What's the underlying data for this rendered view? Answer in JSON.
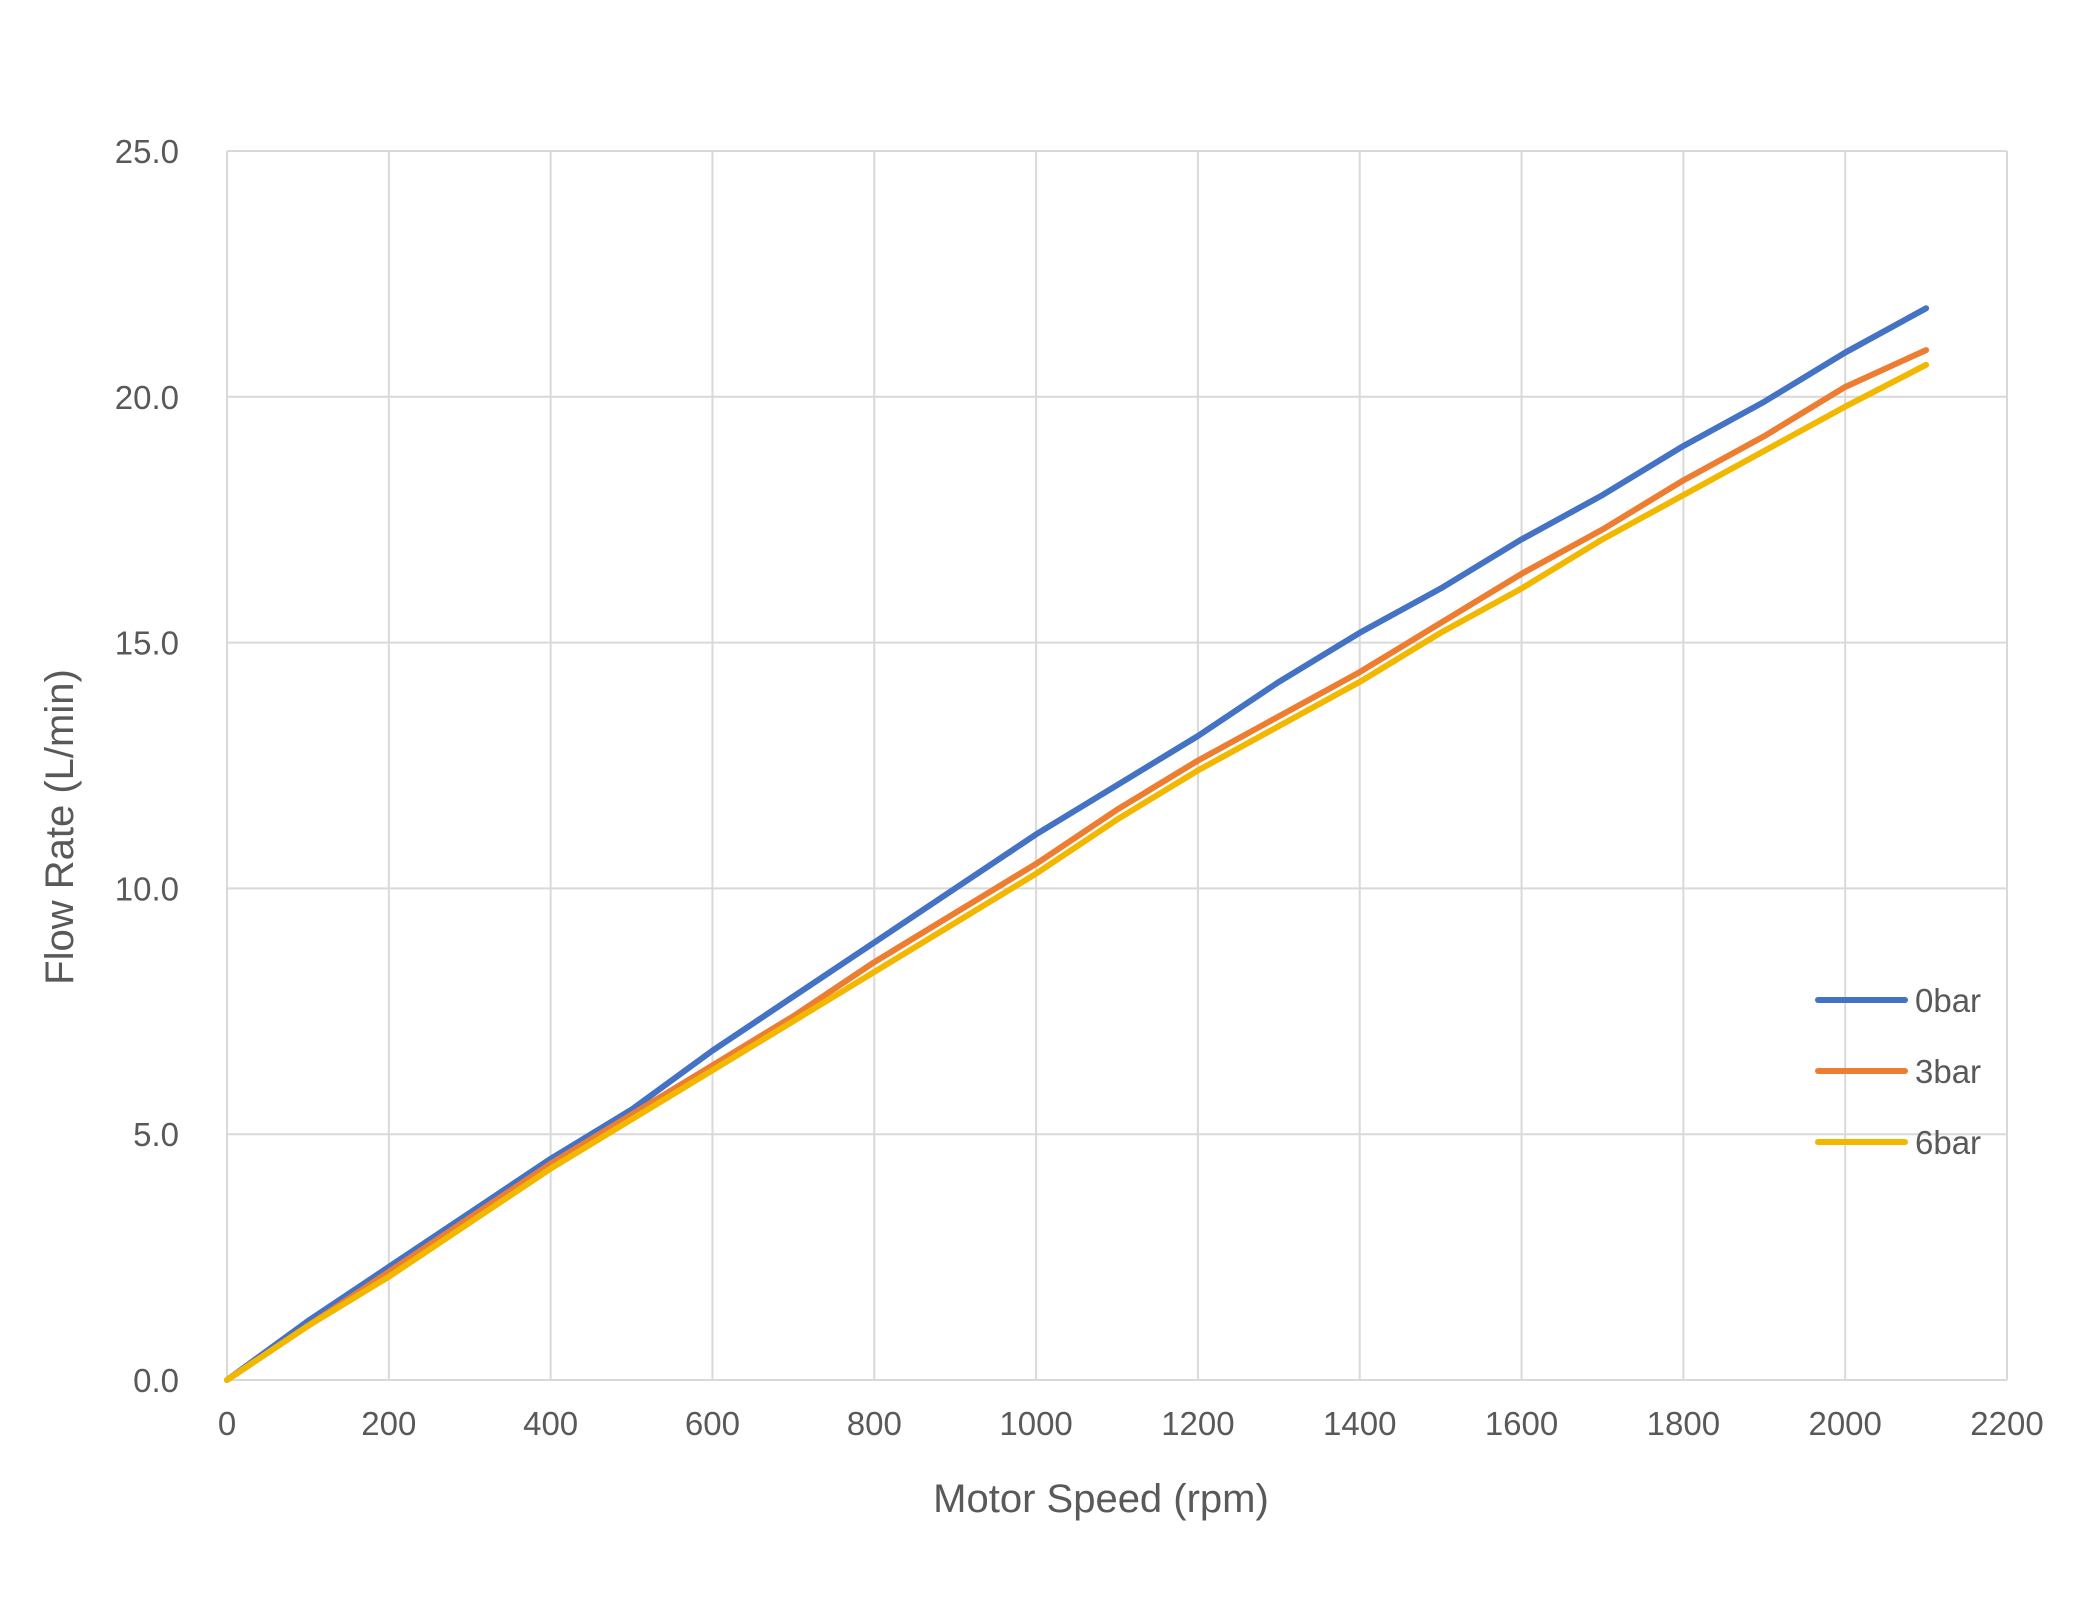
{
  "chart_data": {
    "type": "line",
    "title": "",
    "xlabel": "Motor Speed (rpm)",
    "ylabel": "Flow Rate (L/min)",
    "xlim": [
      0,
      2200
    ],
    "ylim": [
      0,
      25
    ],
    "x_ticks": [
      "0",
      "200",
      "400",
      "600",
      "800",
      "1000",
      "1200",
      "1400",
      "1600",
      "1800",
      "2000",
      "2200"
    ],
    "y_ticks": [
      "0.0",
      "5.0",
      "10.0",
      "15.0",
      "20.0",
      "25.0"
    ],
    "grid": true,
    "legend_position": "right",
    "x": [
      0,
      100,
      200,
      300,
      400,
      500,
      600,
      700,
      800,
      900,
      1000,
      1100,
      1200,
      1300,
      1400,
      1500,
      1600,
      1700,
      1800,
      1900,
      2000,
      2100
    ],
    "series": [
      {
        "name": "0bar",
        "color": "#4472C4",
        "values": [
          0.0,
          1.2,
          2.3,
          3.4,
          4.5,
          5.5,
          6.7,
          7.8,
          8.9,
          10.0,
          11.1,
          12.1,
          13.1,
          14.2,
          15.2,
          16.1,
          17.1,
          18.0,
          19.0,
          19.9,
          20.9,
          21.8
        ]
      },
      {
        "name": "3bar",
        "color": "#ED7D31",
        "values": [
          0.0,
          1.1,
          2.2,
          3.3,
          4.4,
          5.4,
          6.4,
          7.4,
          8.5,
          9.5,
          10.5,
          11.6,
          12.6,
          13.5,
          14.4,
          15.4,
          16.4,
          17.3,
          18.3,
          19.2,
          20.2,
          20.95
        ]
      },
      {
        "name": "6bar",
        "color": "#F2B800",
        "values": [
          0.0,
          1.1,
          2.1,
          3.2,
          4.3,
          5.3,
          6.3,
          7.3,
          8.3,
          9.3,
          10.3,
          11.4,
          12.4,
          13.3,
          14.2,
          15.2,
          16.1,
          17.1,
          18.0,
          18.9,
          19.8,
          20.65
        ]
      }
    ]
  }
}
